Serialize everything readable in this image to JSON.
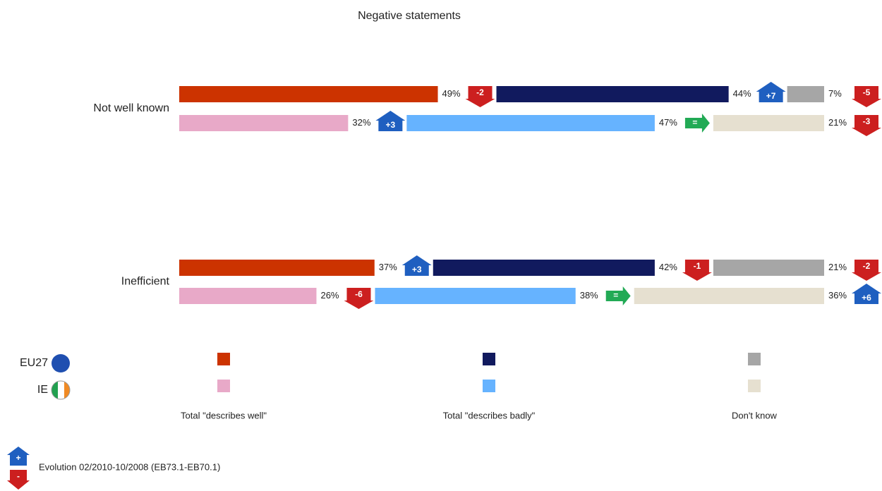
{
  "chart_data": {
    "type": "bar",
    "title": "Negative statements",
    "categories": [
      "Not well known",
      "Inefficient"
    ],
    "segments": [
      "Total \"describes well\"",
      "Total \"describes badly\"",
      "Don't know"
    ],
    "series": [
      {
        "name": "EU27",
        "colors": [
          "#cc3300",
          "#111a5e",
          "#a6a6a6"
        ],
        "values": [
          [
            49,
            44,
            7
          ],
          [
            37,
            42,
            21
          ]
        ],
        "value_labels": [
          [
            "49%",
            "44%",
            "7%"
          ],
          [
            "37%",
            "42%",
            "21%"
          ]
        ],
        "changes": [
          [
            -2,
            7,
            -5
          ],
          [
            3,
            -1,
            -2
          ]
        ],
        "change_labels": [
          [
            "-2",
            "+7",
            "-5"
          ],
          [
            "+3",
            "-1",
            "-2"
          ]
        ]
      },
      {
        "name": "IE",
        "colors": [
          "#e8a9c8",
          "#66b3ff",
          "#e6e0d0"
        ],
        "values": [
          [
            32,
            47,
            21
          ],
          [
            26,
            38,
            36
          ]
        ],
        "value_labels": [
          [
            "32%",
            "47%",
            "21%"
          ],
          [
            "26%",
            "38%",
            "36%"
          ]
        ],
        "changes": [
          [
            3,
            0,
            -3
          ],
          [
            -6,
            0,
            6
          ]
        ],
        "change_labels": [
          [
            "+3",
            "=",
            "-3"
          ],
          [
            "-6",
            "=",
            "+6"
          ]
        ]
      }
    ],
    "evolution_legend": {
      "text": "Evolution 02/2010-10/2008 (EB73.1-EB70.1)",
      "up": "+",
      "down": "-"
    }
  }
}
